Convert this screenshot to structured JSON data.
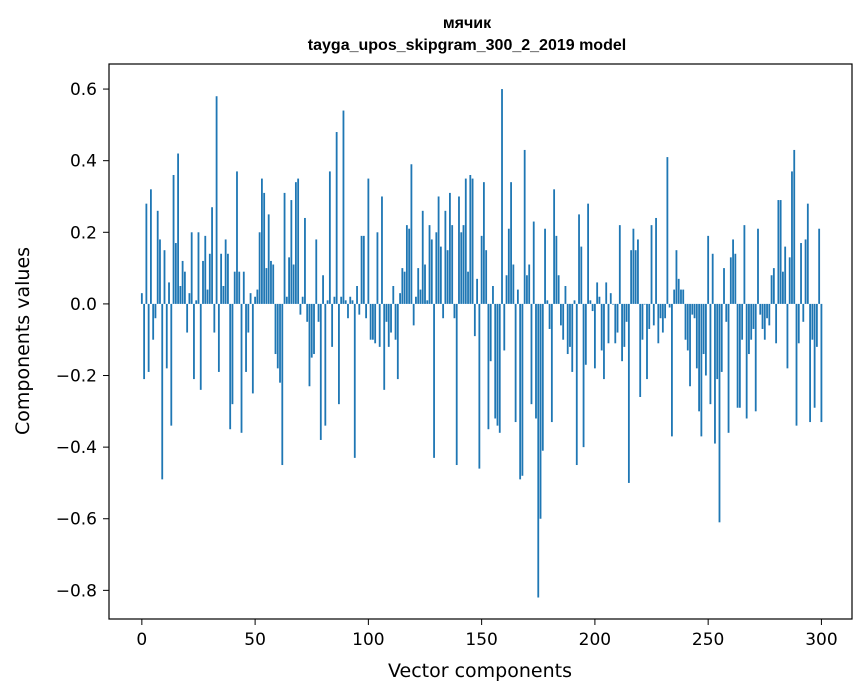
{
  "chart_data": {
    "type": "bar",
    "title": "мячик",
    "subtitle": "tayga_upos_skipgram_300_2_2019 model",
    "xlabel": "Vector components",
    "ylabel": "Components values",
    "xlim": [
      -14.5,
      313.5
    ],
    "ylim": [
      -0.88,
      0.67
    ],
    "xticks": [
      0,
      50,
      100,
      150,
      200,
      250,
      300
    ],
    "xtick_labels": [
      "0",
      "50",
      "100",
      "150",
      "200",
      "250",
      "300"
    ],
    "yticks": [
      -0.8,
      -0.6,
      -0.4,
      -0.2,
      0.0,
      0.2,
      0.4,
      0.6
    ],
    "ytick_labels": [
      "−0.8",
      "−0.6",
      "−0.4",
      "−0.2",
      "0.0",
      "0.2",
      "0.4",
      "0.6"
    ],
    "bar_color": "#1f77b4",
    "values": [
      0.03,
      -0.21,
      0.28,
      -0.19,
      0.32,
      -0.1,
      -0.04,
      0.26,
      0.18,
      -0.49,
      0.15,
      -0.18,
      0.06,
      -0.34,
      0.36,
      0.17,
      0.42,
      0.05,
      0.12,
      0.09,
      -0.08,
      0.03,
      0.2,
      -0.21,
      0.01,
      0.2,
      -0.24,
      0.12,
      0.19,
      0.04,
      0.14,
      0.27,
      -0.08,
      0.58,
      -0.19,
      0.14,
      0.05,
      0.18,
      0.14,
      -0.35,
      -0.28,
      0.09,
      0.37,
      0.09,
      -0.36,
      0.09,
      -0.19,
      -0.08,
      0.03,
      -0.25,
      0.02,
      0.04,
      0.2,
      0.35,
      0.31,
      0.1,
      0.25,
      0.12,
      0.11,
      -0.14,
      -0.18,
      -0.22,
      -0.45,
      0.31,
      0.02,
      0.13,
      0.29,
      0.11,
      0.34,
      0.35,
      -0.03,
      0.02,
      0.24,
      -0.05,
      -0.23,
      -0.15,
      -0.14,
      0.18,
      -0.05,
      -0.38,
      0.08,
      -0.34,
      0.01,
      0.37,
      -0.12,
      0.02,
      0.48,
      -0.28,
      0.02,
      0.54,
      0.01,
      -0.04,
      0.02,
      0.01,
      -0.43,
      0.05,
      -0.03,
      0.19,
      0.19,
      -0.04,
      0.35,
      -0.1,
      -0.1,
      -0.11,
      0.2,
      -0.12,
      0.3,
      -0.24,
      -0.05,
      -0.12,
      -0.08,
      0.05,
      -0.1,
      -0.21,
      0.03,
      0.1,
      0.09,
      0.22,
      0.21,
      0.39,
      -0.06,
      0.02,
      0.1,
      0.04,
      0.26,
      0.11,
      0.01,
      0.22,
      0.18,
      -0.43,
      0.2,
      0.3,
      0.16,
      -0.04,
      0.26,
      0.15,
      0.31,
      0.22,
      -0.04,
      -0.45,
      0.3,
      0.2,
      0.22,
      0.35,
      0.09,
      0.36,
      0.35,
      -0.09,
      0.07,
      -0.46,
      0.19,
      0.34,
      0.15,
      -0.35,
      -0.16,
      0.05,
      -0.32,
      -0.34,
      -0.36,
      0.6,
      -0.13,
      0.08,
      0.21,
      0.34,
      0.11,
      -0.33,
      0.04,
      -0.49,
      -0.48,
      0.43,
      0.08,
      0.11,
      -0.28,
      0.23,
      -0.32,
      -0.82,
      -0.6,
      -0.41,
      0.21,
      0.01,
      -0.07,
      -0.33,
      0.32,
      0.19,
      0.08,
      -0.06,
      -0.1,
      0.05,
      -0.14,
      -0.12,
      -0.19,
      0.01,
      -0.45,
      0.25,
      0.16,
      -0.4,
      -0.17,
      0.28,
      0.01,
      -0.02,
      -0.18,
      0.06,
      0.02,
      -0.13,
      -0.21,
      0.06,
      -0.11,
      0.03,
      0.0,
      -0.11,
      -0.08,
      0.22,
      -0.16,
      -0.12,
      -0.05,
      -0.5,
      0.15,
      0.21,
      0.15,
      0.18,
      -0.26,
      -0.1,
      0.0,
      -0.21,
      -0.07,
      0.22,
      -0.06,
      0.24,
      -0.11,
      -0.04,
      -0.08,
      -0.04,
      0.41,
      -0.01,
      -0.37,
      0.04,
      0.15,
      0.07,
      0.04,
      0.04,
      -0.1,
      -0.13,
      -0.23,
      -0.03,
      -0.04,
      -0.18,
      -0.3,
      -0.37,
      -0.14,
      -0.2,
      0.19,
      -0.28,
      0.14,
      -0.39,
      -0.21,
      -0.61,
      -0.19,
      0.1,
      -0.05,
      -0.36,
      0.13,
      0.18,
      0.14,
      -0.29,
      -0.29,
      -0.1,
      0.22,
      -0.32,
      -0.14,
      -0.1,
      -0.07,
      -0.3,
      0.21,
      -0.03,
      -0.07,
      -0.1,
      -0.04,
      -0.06,
      0.08,
      0.1,
      -0.11,
      0.29,
      0.29,
      0.09,
      0.16,
      -0.18,
      0.13,
      0.37,
      0.43,
      -0.34,
      -0.11,
      0.17,
      -0.05,
      0.18,
      0.28,
      -0.33,
      -0.1,
      -0.29,
      -0.12,
      0.21,
      -0.33
    ]
  }
}
